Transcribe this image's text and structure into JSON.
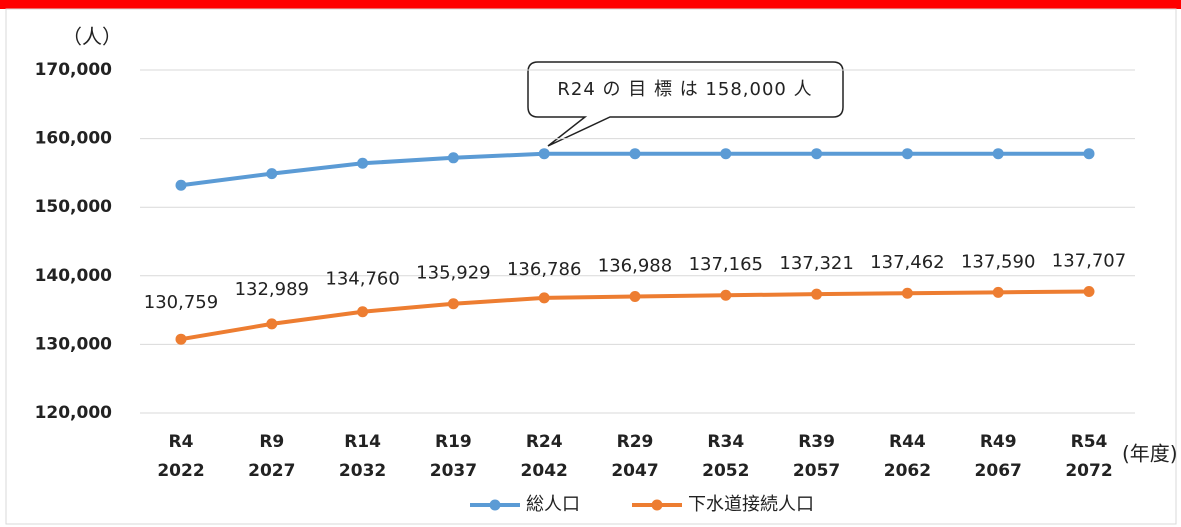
{
  "chart_data": {
    "type": "line",
    "y_label": "（人）",
    "x_label": "(年度)",
    "annotation": "R24 の 目 標 は 158,000 人",
    "categories": [
      [
        "R4",
        "2022"
      ],
      [
        "R9",
        "2027"
      ],
      [
        "R14",
        "2032"
      ],
      [
        "R19",
        "2037"
      ],
      [
        "R24",
        "2042"
      ],
      [
        "R29",
        "2047"
      ],
      [
        "R34",
        "2052"
      ],
      [
        "R39",
        "2057"
      ],
      [
        "R44",
        "2062"
      ],
      [
        "R49",
        "2067"
      ],
      [
        "R54",
        "2072"
      ]
    ],
    "series": [
      {
        "name": "総人口",
        "color": "#5b9bd5",
        "values": [
          153200,
          154900,
          156400,
          157200,
          157800,
          157800,
          157800,
          157800,
          157800,
          157800,
          157800
        ]
      },
      {
        "name": "下水道接続人口",
        "color": "#ed7d31",
        "values": [
          130759,
          132989,
          134760,
          135929,
          136786,
          136988,
          137165,
          137321,
          137462,
          137590,
          137707
        ],
        "value_labels": [
          "130,759",
          "132,989",
          "134,760",
          "135,929",
          "136,786",
          "136,988",
          "137,165",
          "137,321",
          "137,462",
          "137,590",
          "137,707"
        ]
      }
    ],
    "ylim": [
      120000,
      170000
    ],
    "yticks": [
      {
        "value": 120000,
        "label": "120,000"
      },
      {
        "value": 130000,
        "label": "130,000"
      },
      {
        "value": 140000,
        "label": "140,000"
      },
      {
        "value": 150000,
        "label": "150,000"
      },
      {
        "value": 160000,
        "label": "160,000"
      },
      {
        "value": 170000,
        "label": "170,000"
      }
    ],
    "grid": true,
    "legend": "bottom"
  }
}
